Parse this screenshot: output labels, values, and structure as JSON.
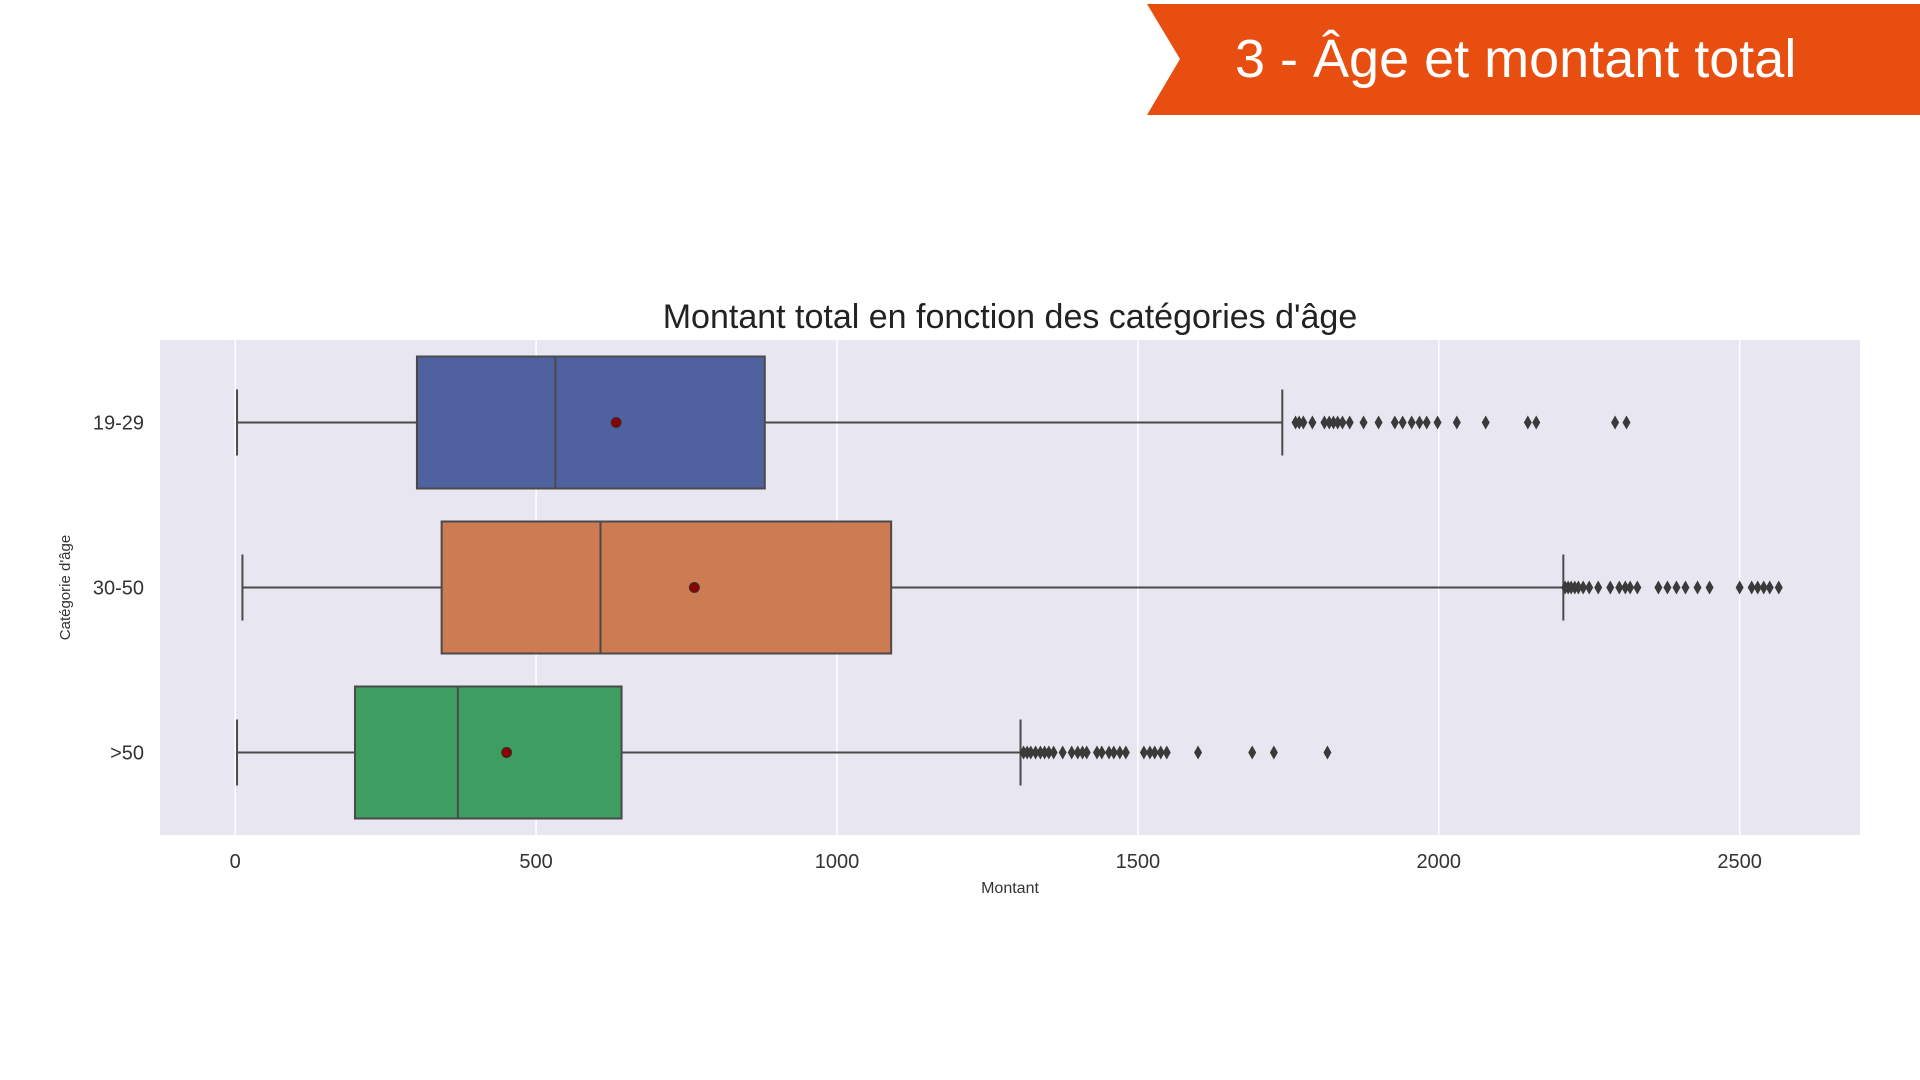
{
  "banner": {
    "title": "3 - Âge et montant total",
    "color": "#E84E0F"
  },
  "chart_data": {
    "type": "box",
    "orientation": "horizontal",
    "title": "Montant total en fonction des catégories d'âge",
    "xlabel": "Montant",
    "ylabel": "Catégorie d'âge",
    "xlim": [
      -125,
      2700
    ],
    "xticks": [
      0,
      500,
      1000,
      1500,
      2000,
      2500
    ],
    "grid": true,
    "background": "#E8E6F0",
    "mean_marker_color": "#8B0000",
    "categories": [
      "19-29",
      "30-50",
      ">50"
    ],
    "series": [
      {
        "category": "19-29",
        "color": "#5061A0",
        "whisker_low": 3,
        "q1": 302,
        "median": 532,
        "q3": 880,
        "whisker_high": 1740,
        "mean": 633,
        "outliers": [
          1762,
          1768,
          1775,
          1790,
          1810,
          1818,
          1825,
          1832,
          1840,
          1852,
          1875,
          1900,
          1927,
          1940,
          1955,
          1968,
          1980,
          1998,
          2030,
          2078,
          2148,
          2162,
          2293,
          2312
        ]
      },
      {
        "category": "30-50",
        "color": "#CD7B52",
        "whisker_low": 12,
        "q1": 343,
        "median": 607,
        "q3": 1090,
        "whisker_high": 2207,
        "mean": 763,
        "outliers": [
          2210,
          2215,
          2220,
          2226,
          2232,
          2240,
          2250,
          2265,
          2285,
          2300,
          2310,
          2318,
          2330,
          2365,
          2380,
          2395,
          2410,
          2430,
          2450,
          2500,
          2520,
          2530,
          2540,
          2550,
          2565
        ]
      },
      {
        "category": ">50",
        "color": "#3E9E62",
        "whisker_low": 3,
        "q1": 199,
        "median": 370,
        "q3": 642,
        "whisker_high": 1305,
        "mean": 451,
        "outliers": [
          1310,
          1316,
          1322,
          1330,
          1338,
          1345,
          1352,
          1360,
          1375,
          1390,
          1400,
          1408,
          1415,
          1432,
          1440,
          1452,
          1460,
          1470,
          1480,
          1510,
          1520,
          1528,
          1538,
          1548,
          1600,
          1690,
          1726,
          1815
        ]
      }
    ]
  }
}
